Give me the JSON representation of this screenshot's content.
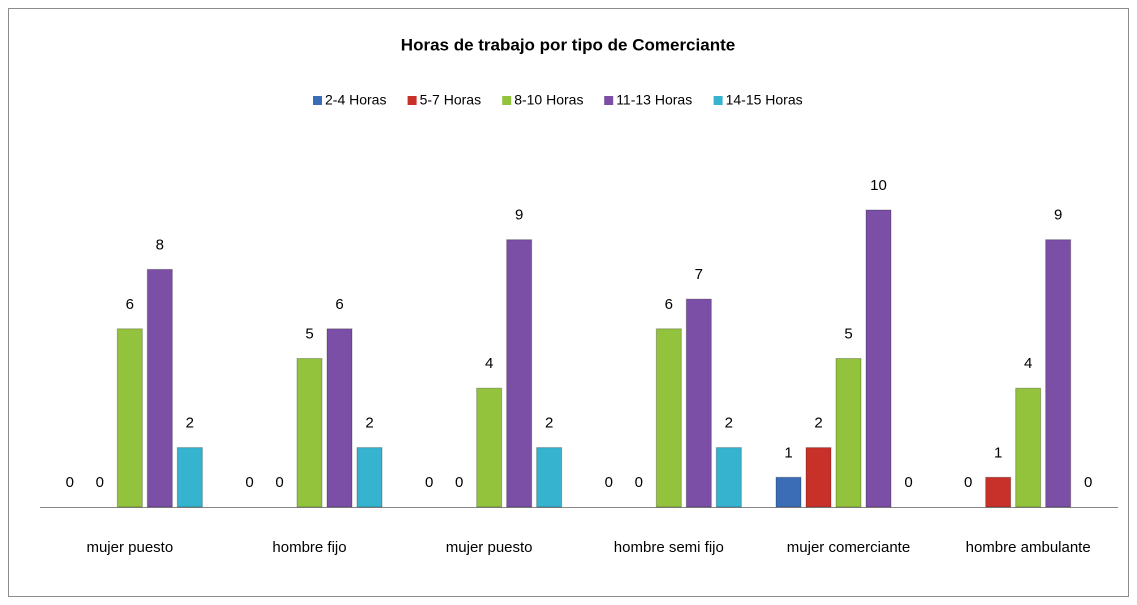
{
  "chart_data": {
    "type": "bar",
    "title": "Horas de trabajo por tipo de Comerciante",
    "categories": [
      "mujer puesto",
      "hombre fijo",
      "mujer puesto",
      "hombre semi fijo",
      "mujer comerciante",
      "hombre ambulante"
    ],
    "series": [
      {
        "name": "2-4 Horas",
        "color": "#3a6db6",
        "values": [
          0,
          0,
          0,
          0,
          1,
          0
        ]
      },
      {
        "name": "5-7 Horas",
        "color": "#c8302a",
        "values": [
          0,
          0,
          0,
          0,
          2,
          1
        ]
      },
      {
        "name": "8-10 Horas",
        "color": "#93c23c",
        "values": [
          6,
          5,
          4,
          6,
          5,
          4
        ]
      },
      {
        "name": "11-13 Horas",
        "color": "#7b4fa5",
        "values": [
          8,
          6,
          9,
          7,
          10,
          9
        ]
      },
      {
        "name": "14-15 Horas",
        "color": "#35b3cf",
        "values": [
          2,
          2,
          2,
          2,
          0,
          0
        ]
      }
    ]
  }
}
